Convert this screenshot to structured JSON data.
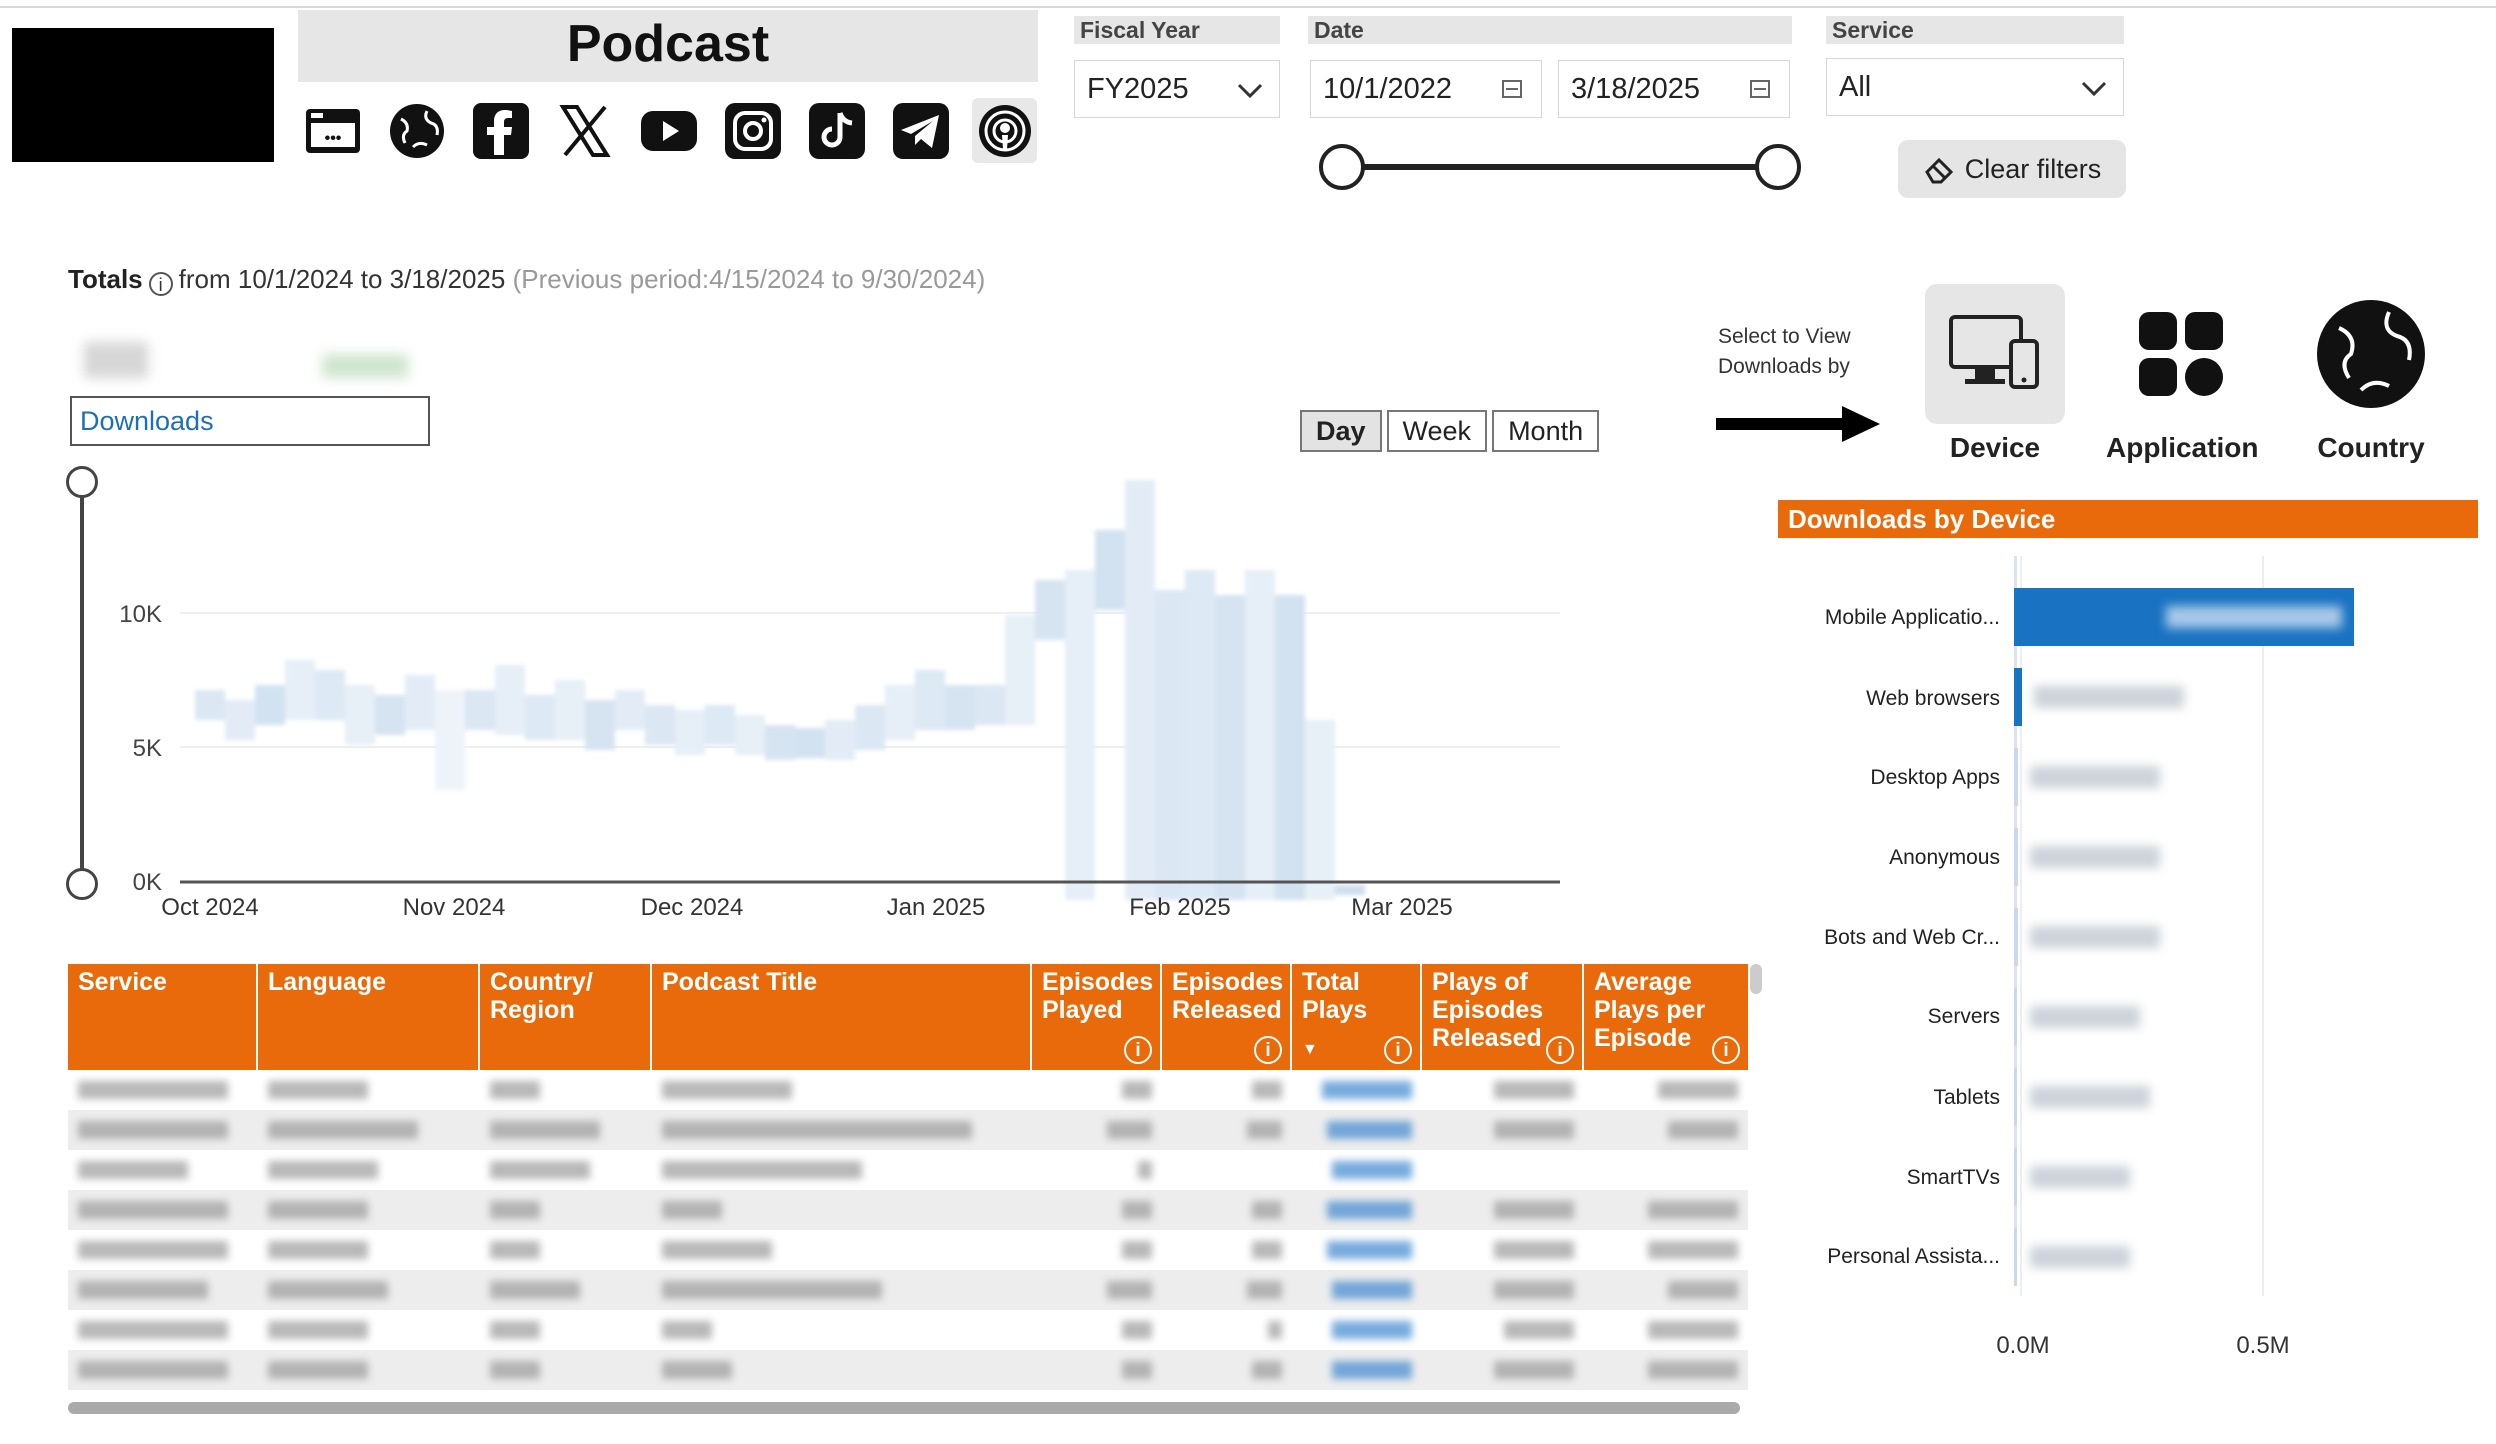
{
  "header": {
    "title": "Podcast",
    "icons": [
      {
        "name": "website-icon",
        "active": false
      },
      {
        "name": "globe-icon",
        "active": false
      },
      {
        "name": "facebook-icon",
        "active": false
      },
      {
        "name": "x-icon",
        "active": false
      },
      {
        "name": "youtube-icon",
        "active": false
      },
      {
        "name": "instagram-icon",
        "active": false
      },
      {
        "name": "tiktok-icon",
        "active": false
      },
      {
        "name": "telegram-icon",
        "active": false
      },
      {
        "name": "podcast-icon",
        "active": true
      }
    ]
  },
  "filters": {
    "fiscal_year": {
      "label": "Fiscal Year",
      "value": "FY2025"
    },
    "date": {
      "label": "Date",
      "start": "10/1/2022",
      "end": "3/18/2025"
    },
    "service": {
      "label": "Service",
      "value": "All"
    },
    "clear_label": "Clear filters"
  },
  "totals": {
    "label": "Totals",
    "range_text": "from 10/1/2024 to 3/18/2025",
    "previous_text": "(Previous period:4/15/2024 to 9/30/2024)",
    "measure": "Downloads"
  },
  "granularity": {
    "options": [
      "Day",
      "Week",
      "Month"
    ],
    "selected": "Day"
  },
  "line_chart": {
    "y_ticks": [
      "0K",
      "5K",
      "10K"
    ],
    "x_ticks": [
      "Oct 2024",
      "Nov 2024",
      "Dec 2024",
      "Jan 2025",
      "Feb 2025",
      "Mar 2025"
    ]
  },
  "view_selector": {
    "prompt_line1": "Select to View",
    "prompt_line2": "Downloads by",
    "options": [
      {
        "label": "Device",
        "icon": "device-icon",
        "active": true
      },
      {
        "label": "Application",
        "icon": "application-icon",
        "active": false
      },
      {
        "label": "Country",
        "icon": "globe-icon",
        "active": false
      }
    ]
  },
  "downloads_by_device": {
    "title": "Downloads by Device",
    "categories": [
      "Mobile Applicatio...",
      "Web browsers",
      "Desktop Apps",
      "Anonymous",
      "Bots and Web Cr...",
      "Servers",
      "Tablets",
      "SmartTVs",
      "Personal Assista..."
    ],
    "x_ticks": [
      "0.0M",
      "0.5M"
    ]
  },
  "table": {
    "columns": [
      {
        "label": "Service",
        "info": false
      },
      {
        "label": "Language",
        "info": false
      },
      {
        "label": "Country/ Region",
        "info": false
      },
      {
        "label": "Podcast Title",
        "info": false
      },
      {
        "label": "Episodes Played",
        "info": true
      },
      {
        "label": "Episodes Released",
        "info": true
      },
      {
        "label": "Total Plays",
        "info": true
      },
      {
        "label": "Plays of Episodes Released",
        "info": true
      },
      {
        "label": "Average Plays per Episode",
        "info": true
      }
    ],
    "row_count": 8
  },
  "colors": {
    "accent_orange": "#e96a0a",
    "bar_blue": "#1a73c2",
    "link_blue": "#1f6fb8"
  }
}
